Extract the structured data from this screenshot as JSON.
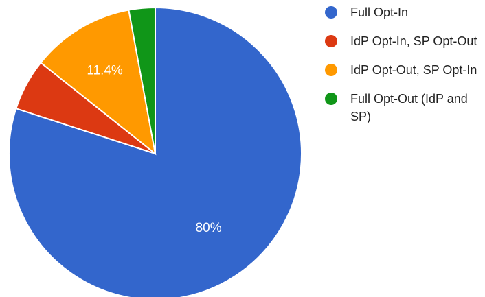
{
  "chart_data": {
    "type": "pie",
    "slices": [
      {
        "label": "Full Opt-In",
        "value": 80,
        "value_label": "80%",
        "color": "#3366cc"
      },
      {
        "label": "IdP Opt-In, SP Opt-Out",
        "value": 5.7,
        "value_label": "",
        "color": "#dc3912"
      },
      {
        "label": "IdP Opt-Out, SP Opt-In",
        "value": 11.4,
        "value_label": "11.4%",
        "color": "#ff9900"
      },
      {
        "label": "Full Opt-Out (IdP and SP)",
        "value": 2.9,
        "value_label": "",
        "color": "#109618"
      }
    ],
    "legend_position": "right"
  }
}
